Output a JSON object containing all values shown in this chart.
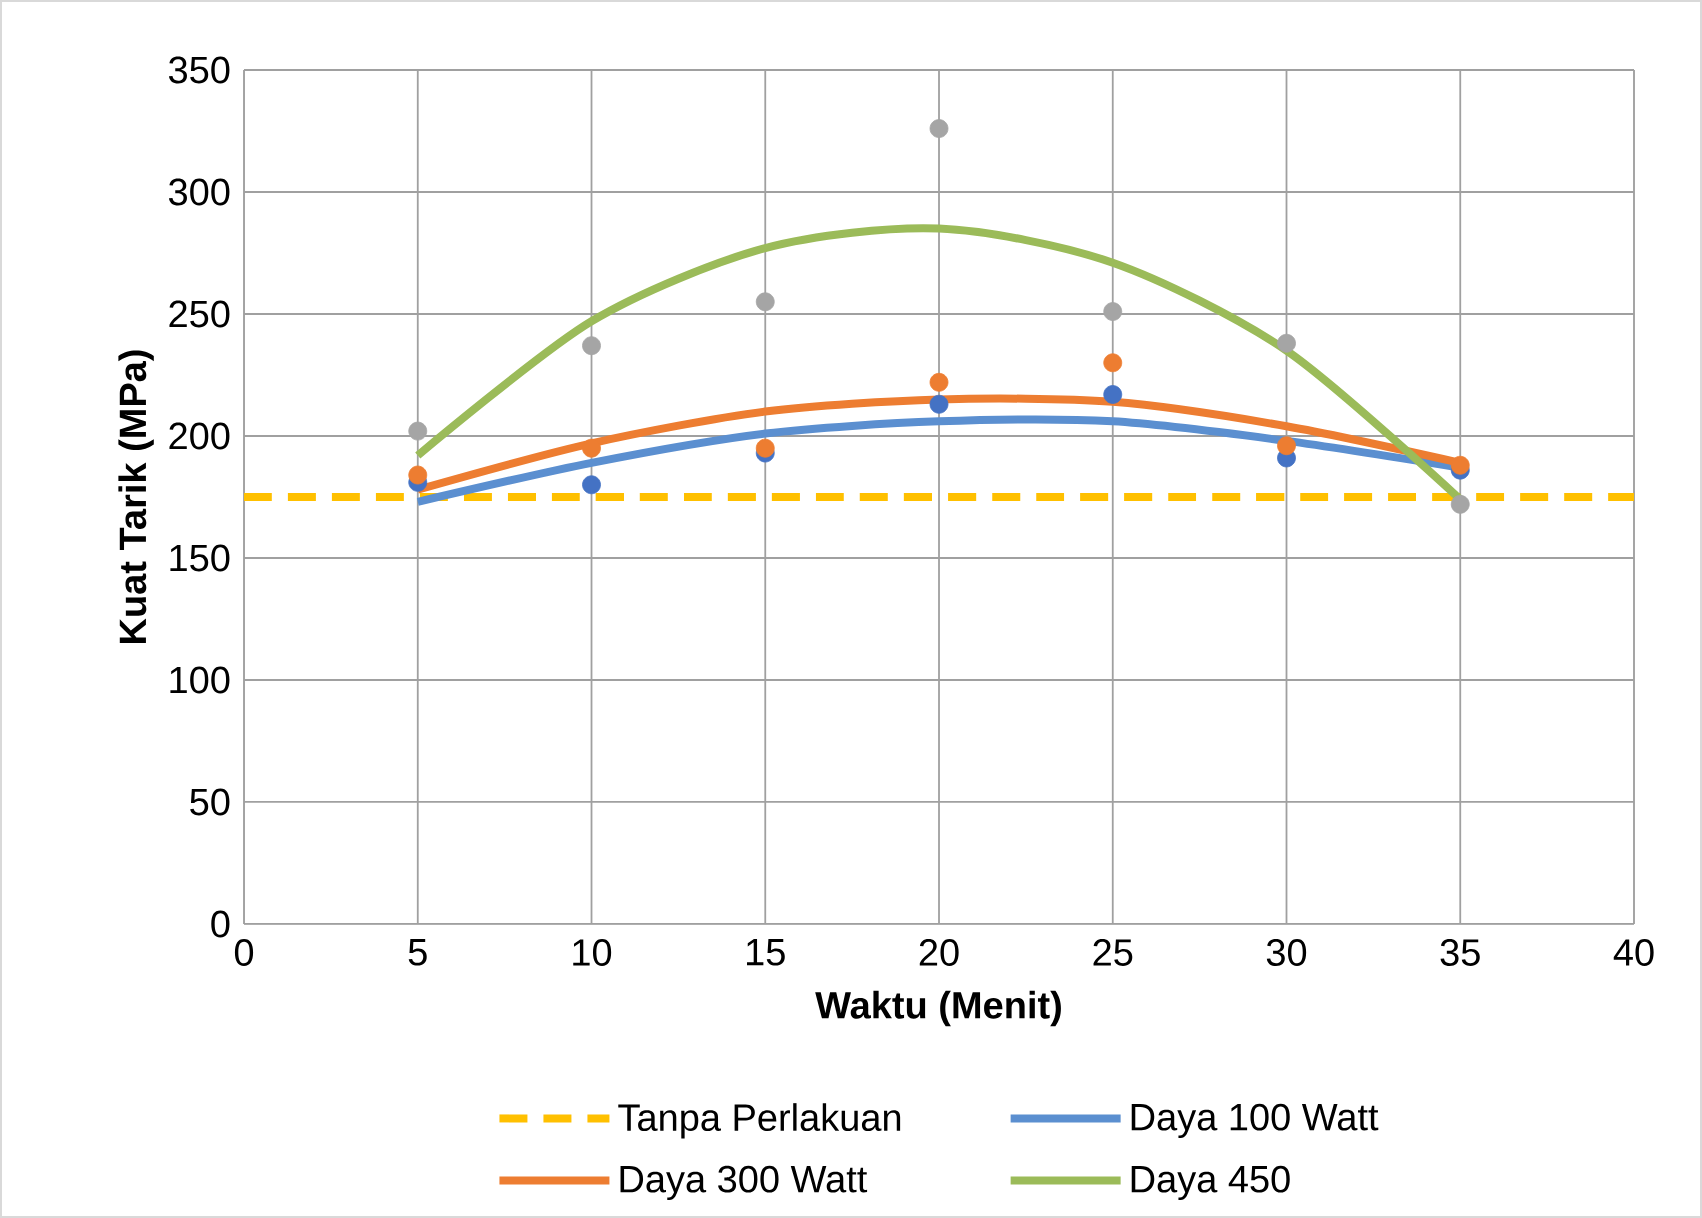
{
  "chart_data": {
    "type": "scatter",
    "xlabel": "Waktu (Menit)",
    "ylabel": "Kuat Tarik (MPa)",
    "xlim": [
      0,
      40
    ],
    "ylim": [
      0,
      350
    ],
    "xticks": [
      0,
      5,
      10,
      15,
      20,
      25,
      30,
      35,
      40
    ],
    "yticks": [
      0,
      50,
      100,
      150,
      200,
      250,
      300,
      350
    ],
    "grid": true,
    "legend": "bottom",
    "series": [
      {
        "color": "#4472c4",
        "marker": "circle",
        "x": [
          5,
          10,
          15,
          20,
          25,
          30,
          35
        ],
        "values": [
          181,
          180,
          193,
          213,
          217,
          191,
          186
        ]
      },
      {
        "color": "#ed7d31",
        "marker": "circle",
        "x": [
          5,
          10,
          15,
          20,
          25,
          30,
          35
        ],
        "values": [
          184,
          195,
          195,
          222,
          230,
          196,
          188
        ]
      },
      {
        "color": "#a5a5a5",
        "marker": "circle",
        "x": [
          5,
          10,
          15,
          20,
          25,
          30,
          35
        ],
        "values": [
          202,
          237,
          255,
          326,
          251,
          238,
          172
        ]
      },
      {
        "type": "line",
        "name": "Tanpa Perlakuan",
        "color": "#ffc000",
        "line_style": "dashed",
        "marker": "none",
        "x": [
          0,
          40
        ],
        "values": [
          175,
          175
        ]
      },
      {
        "type": "line",
        "name": "Daya 100 Watt",
        "color": "#5b8fd0",
        "line_style": "solid",
        "marker": "none",
        "x": [
          5,
          10,
          15,
          20,
          25,
          30,
          35
        ],
        "values": [
          173,
          189,
          201,
          206,
          206,
          198,
          187
        ]
      },
      {
        "type": "line",
        "name": "Daya 300 Watt",
        "color": "#ed7d31",
        "line_style": "solid",
        "marker": "none",
        "x": [
          5,
          10,
          15,
          20,
          25,
          30,
          35
        ],
        "values": [
          178,
          197,
          210,
          215,
          214,
          204,
          189
        ]
      },
      {
        "type": "line",
        "name": "Daya 450",
        "color": "#9bbb59",
        "line_style": "solid",
        "marker": "none",
        "x": [
          5,
          10,
          15,
          20,
          25,
          30,
          35
        ],
        "values": [
          192,
          247,
          277,
          285,
          271,
          235,
          174
        ]
      }
    ]
  }
}
